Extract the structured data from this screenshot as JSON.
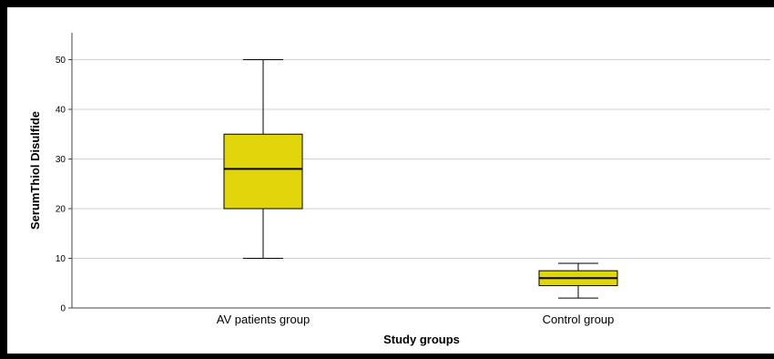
{
  "chart_data": {
    "type": "box",
    "title": "",
    "xlabel": "Study groups",
    "ylabel": "SerumThiol Disulfide",
    "ylim": [
      0,
      55
    ],
    "yticks": [
      0,
      10,
      20,
      30,
      40,
      50
    ],
    "grid": true,
    "categories": [
      "AV patients group",
      "Control group"
    ],
    "boxes": [
      {
        "category": "AV patients group",
        "min": 10,
        "q1": 20,
        "median": 28,
        "q3": 35,
        "max": 50
      },
      {
        "category": "Control group",
        "min": 2,
        "q1": 4.5,
        "median": 6,
        "q3": 7.5,
        "max": 9
      }
    ],
    "colors": {
      "box_fill": "#e1d50b",
      "box_stroke": "#000000",
      "grid": "#d0d0d0",
      "axis": "#444444"
    }
  }
}
